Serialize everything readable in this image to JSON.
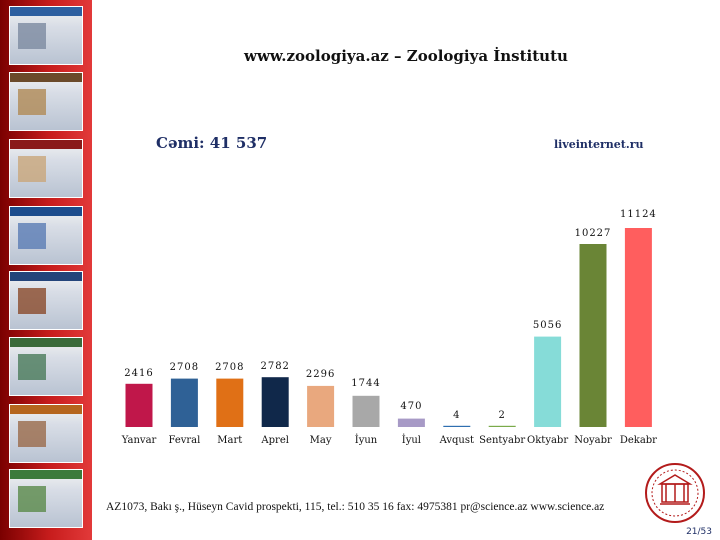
{
  "slide": {
    "title": "www.zoologiya.az – Zoologiya İnstitutu",
    "total_label": "Cəmi: 41 537",
    "source": "liveinternet.ru",
    "footer": "AZ1073, Bakı ş., Hüseyn Cavid prospekti, 115, tel.: 510 35 16  fax: 4975381  pr@science.az  www.science.az",
    "page_number": "21/53"
  },
  "sidebar_thumbnails": [
    "site-screenshot-1",
    "site-screenshot-2",
    "site-screenshot-3",
    "site-screenshot-4",
    "site-screenshot-5",
    "site-screenshot-6",
    "site-screenshot-7",
    "site-screenshot-8"
  ],
  "logo": "science-seal-icon",
  "chart_data": {
    "type": "bar",
    "title": "",
    "xlabel": "",
    "ylabel": "",
    "categories": [
      "Yanvar",
      "Fevral",
      "Mart",
      "Aprel",
      "May",
      "İyun",
      "İyul",
      "Avqust",
      "Sentyabr",
      "Oktyabr",
      "Noyabr",
      "Dekabr"
    ],
    "values": [
      2416,
      2708,
      2708,
      2782,
      2296,
      1744,
      470,
      4,
      2,
      5056,
      10227,
      11124
    ],
    "value_labels": [
      "2416",
      "2708",
      "2708",
      "2782",
      "2296",
      "1744",
      "470",
      "4",
      "2",
      "5056",
      "10227",
      "11124"
    ],
    "colors": [
      "#c0174a",
      "#2f6196",
      "#e07016",
      "#10284a",
      "#e9a87e",
      "#a8a8a8",
      "#a79ac6",
      "#2f6fb0",
      "#7aaa4a",
      "#86dcd8",
      "#6a8536",
      "#ff5e5e"
    ],
    "ylim": [
      0,
      11124
    ],
    "grid": false,
    "legend": "none"
  }
}
